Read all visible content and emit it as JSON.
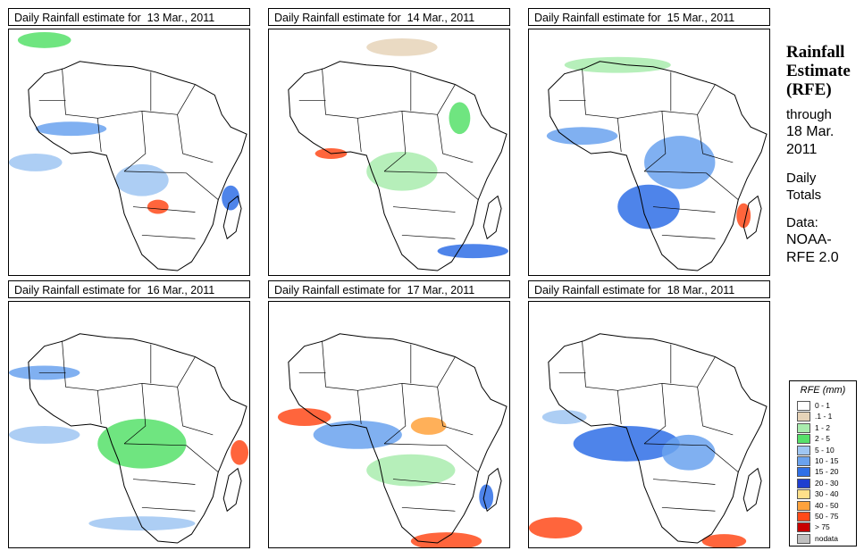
{
  "panels": [
    {
      "title": "Daily Rainfall estimate for  13 Mar., 2011"
    },
    {
      "title": "Daily Rainfall estimate for  14 Mar., 2011"
    },
    {
      "title": "Daily Rainfall estimate for  15 Mar., 2011"
    },
    {
      "title": "Daily Rainfall estimate for  16 Mar., 2011"
    },
    {
      "title": "Daily Rainfall estimate for  17 Mar., 2011"
    },
    {
      "title": "Daily Rainfall estimate for  18 Mar., 2011"
    }
  ],
  "side": {
    "title_line1": "Rainfall",
    "title_line2": "Estimate",
    "title_line3": "(RFE)",
    "through": "through",
    "date_line1": "18 Mar.",
    "date_line2": "2011",
    "daily": "Daily",
    "totals": "Totals",
    "data_label": "Data:",
    "source_line1": "NOAA-",
    "source_line2": "RFE 2.0"
  },
  "legend": {
    "title": "RFE (mm)",
    "items": [
      {
        "label": "0 - 1",
        "color": "#ffffff"
      },
      {
        "label": ".1 - 1",
        "color": "#e6d3b8"
      },
      {
        "label": "1 - 2",
        "color": "#a9ecae"
      },
      {
        "label": "2 - 5",
        "color": "#56e06a"
      },
      {
        "label": "5 - 10",
        "color": "#9fc6f2"
      },
      {
        "label": "10 - 15",
        "color": "#6aa2ee"
      },
      {
        "label": "15 - 20",
        "color": "#2f6fe6"
      },
      {
        "label": "20 - 30",
        "color": "#1f3fd0"
      },
      {
        "label": "30 - 40",
        "color": "#ffe08a"
      },
      {
        "label": "40 - 50",
        "color": "#ffa23c"
      },
      {
        "label": "50 - 75",
        "color": "#ff4a1a"
      },
      {
        "label": "> 75",
        "color": "#c80000"
      },
      {
        "label": "nodata",
        "color": "#c0c0c0"
      }
    ]
  }
}
